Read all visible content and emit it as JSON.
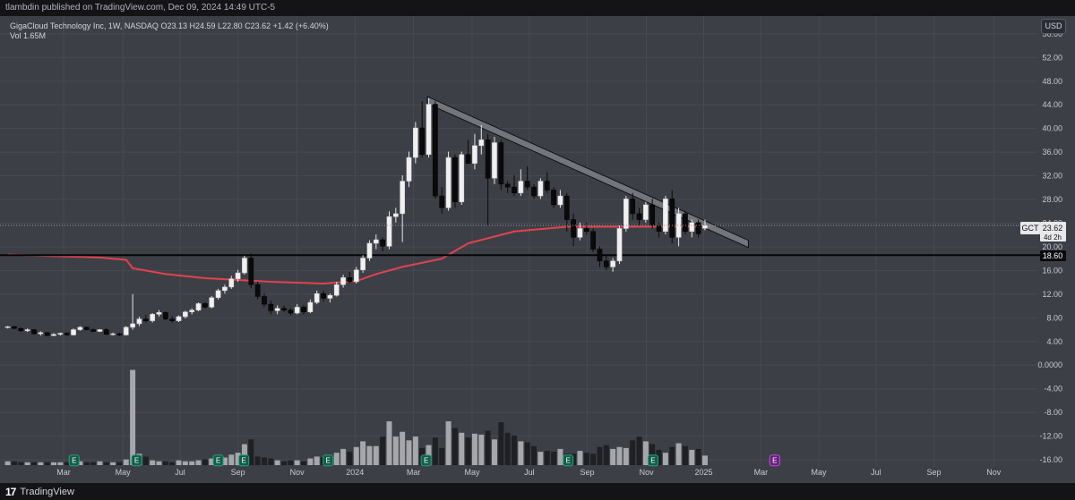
{
  "header": {
    "publish_text": "tlambdin published on TradingView.com, Dec 09, 2024 14:49 UTC-5"
  },
  "legend": {
    "symbol_line": "GigaCloud Technology Inc, 1W, NASDAQ",
    "o_label": "O",
    "o_value": "23.13",
    "h_label": "H",
    "h_value": "24.59",
    "l_label": "L",
    "l_value": "22.80",
    "c_label": "C",
    "c_value": "23.62",
    "change": "+1.42 (+6.40%)",
    "vol_label": "Vol",
    "vol_value": "1.65M"
  },
  "currency_button": "USD",
  "footer": {
    "brand": "TradingView",
    "logo_glyph": "17"
  },
  "price_tag": {
    "symbol": "GCT",
    "price": "23.62",
    "countdown": "4d 2h"
  },
  "level_tag": "18.60",
  "colors": {
    "background": "#141417",
    "plot_bg": "#3d3f47",
    "grid": "#484a53",
    "candle_up": "#f0f0f0",
    "candle_down": "#0a0a0a",
    "ma_line": "#e2434e",
    "trend_channel": "#7c7f86",
    "vol_up": "#a5a7ad",
    "vol_down": "#1f2024",
    "earnings_green": "#0f5d49",
    "earnings_purple": "#6a1e80"
  },
  "chart_data": {
    "type": "candlestick",
    "timeframe": "1W",
    "y_ticks": [
      "56.00",
      "52.00",
      "48.00",
      "44.00",
      "40.00",
      "36.00",
      "32.00",
      "28.00",
      "24.00",
      "20.00",
      "16.00",
      "12.00",
      "8.00",
      "4.00",
      "0.0000",
      "-4.00",
      "-8.00",
      "-12.00",
      "-16.00"
    ],
    "y_range": [
      -17.2,
      59
    ],
    "x_ticks": [
      {
        "label": "Mar",
        "t": 8.5
      },
      {
        "label": "May",
        "t": 17.5
      },
      {
        "label": "Jul",
        "t": 26.2
      },
      {
        "label": "Sep",
        "t": 35
      },
      {
        "label": "Nov",
        "t": 44
      },
      {
        "label": "2024",
        "t": 52.8
      },
      {
        "label": "Mar",
        "t": 61.7
      },
      {
        "label": "May",
        "t": 70.6
      },
      {
        "label": "Jul",
        "t": 79.3
      },
      {
        "label": "Sep",
        "t": 88.1
      },
      {
        "label": "Nov",
        "t": 97.1
      },
      {
        "label": "2025",
        "t": 105.8
      },
      {
        "label": "Mar",
        "t": 114.5
      },
      {
        "label": "May",
        "t": 123.3
      },
      {
        "label": "Jul",
        "t": 132
      },
      {
        "label": "Sep",
        "t": 140.8
      },
      {
        "label": "Nov",
        "t": 149.9
      }
    ],
    "candles": [
      [
        6.4,
        6.6,
        6.2,
        6.5
      ],
      [
        6.5,
        6.7,
        6.1,
        6.2
      ],
      [
        6.2,
        6.4,
        5.6,
        5.8
      ],
      [
        5.8,
        6.2,
        5.6,
        6.0
      ],
      [
        6.0,
        6.1,
        5.2,
        5.3
      ],
      [
        5.3,
        5.7,
        5.0,
        5.5
      ],
      [
        5.5,
        5.6,
        4.9,
        5.0
      ],
      [
        5.0,
        5.4,
        4.9,
        5.2
      ],
      [
        5.2,
        5.5,
        5.0,
        5.4
      ],
      [
        5.4,
        5.6,
        5.0,
        5.1
      ],
      [
        5.1,
        6.2,
        5.0,
        6.0
      ],
      [
        6.0,
        6.6,
        5.8,
        6.4
      ],
      [
        6.4,
        6.5,
        5.9,
        6.0
      ],
      [
        6.0,
        6.2,
        5.6,
        5.7
      ],
      [
        5.7,
        6.1,
        5.6,
        6.0
      ],
      [
        6.0,
        6.3,
        5.1,
        5.2
      ],
      [
        5.2,
        5.5,
        5.0,
        5.3
      ],
      [
        5.3,
        5.5,
        4.9,
        5.1
      ],
      [
        5.1,
        6.6,
        5.0,
        6.4
      ],
      [
        6.4,
        12.0,
        6.0,
        7.0
      ],
      [
        7.0,
        8.2,
        6.6,
        7.8
      ],
      [
        7.8,
        8.5,
        7.2,
        7.5
      ],
      [
        7.5,
        8.8,
        7.2,
        8.6
      ],
      [
        8.6,
        9.3,
        8.2,
        8.9
      ],
      [
        8.9,
        9.1,
        7.6,
        7.8
      ],
      [
        7.8,
        8.3,
        7.2,
        7.5
      ],
      [
        7.5,
        8.4,
        7.3,
        8.2
      ],
      [
        8.2,
        9.2,
        7.9,
        9.0
      ],
      [
        9.0,
        9.6,
        8.6,
        9.3
      ],
      [
        9.3,
        10.6,
        9.1,
        10.4
      ],
      [
        10.4,
        10.6,
        9.6,
        9.8
      ],
      [
        9.8,
        11.7,
        9.6,
        11.4
      ],
      [
        11.4,
        12.9,
        11.1,
        12.6
      ],
      [
        12.6,
        13.6,
        12.1,
        13.2
      ],
      [
        13.2,
        15.1,
        12.9,
        14.6
      ],
      [
        14.6,
        16.1,
        14.1,
        15.6
      ],
      [
        15.6,
        18.5,
        15.3,
        18.1
      ],
      [
        18.1,
        18.9,
        13.0,
        13.6
      ],
      [
        13.6,
        14.1,
        11.1,
        11.6
      ],
      [
        11.6,
        12.1,
        9.8,
        10.3
      ],
      [
        10.3,
        10.9,
        8.6,
        9.2
      ],
      [
        9.2,
        10.1,
        8.6,
        9.6
      ],
      [
        9.6,
        10.1,
        9.0,
        9.3
      ],
      [
        9.3,
        9.6,
        8.4,
        8.8
      ],
      [
        8.8,
        10.3,
        8.6,
        9.8
      ],
      [
        9.8,
        10.1,
        8.6,
        9.0
      ],
      [
        9.0,
        11.1,
        8.8,
        10.6
      ],
      [
        10.6,
        12.6,
        10.3,
        12.1
      ],
      [
        12.1,
        12.6,
        10.8,
        11.3
      ],
      [
        11.3,
        12.1,
        10.6,
        11.8
      ],
      [
        11.8,
        14.1,
        11.6,
        13.6
      ],
      [
        13.6,
        15.3,
        13.1,
        14.8
      ],
      [
        14.8,
        15.8,
        13.8,
        14.1
      ],
      [
        14.1,
        16.6,
        13.8,
        16.1
      ],
      [
        16.1,
        18.6,
        15.6,
        18.1
      ],
      [
        18.1,
        21.1,
        17.6,
        20.6
      ],
      [
        20.6,
        22.1,
        19.6,
        21.2
      ],
      [
        21.2,
        21.6,
        19.2,
        20.1
      ],
      [
        20.1,
        26.0,
        19.6,
        25.1
      ],
      [
        25.1,
        26.6,
        24.1,
        25.6
      ],
      [
        25.6,
        32.1,
        20.8,
        31.1
      ],
      [
        31.1,
        36.1,
        30.1,
        35.1
      ],
      [
        35.1,
        41.1,
        34.1,
        40.1
      ],
      [
        40.1,
        44.6,
        35.1,
        35.6
      ],
      [
        35.6,
        45.1,
        35.1,
        44.1
      ],
      [
        44.1,
        44.6,
        28.1,
        28.6
      ],
      [
        28.6,
        30.1,
        25.6,
        26.6
      ],
      [
        26.6,
        36.1,
        26.1,
        35.1
      ],
      [
        35.1,
        35.6,
        26.6,
        27.6
      ],
      [
        27.6,
        36.1,
        27.1,
        35.6
      ],
      [
        35.6,
        38.1,
        34.6,
        34.1
      ],
      [
        34.1,
        39.1,
        33.1,
        37.1
      ],
      [
        37.1,
        40.6,
        35.6,
        38.1
      ],
      [
        38.1,
        39.1,
        23.6,
        31.6
      ],
      [
        31.6,
        38.6,
        30.6,
        37.6
      ],
      [
        37.6,
        38.1,
        29.6,
        30.6
      ],
      [
        30.6,
        31.1,
        29.1,
        30.1
      ],
      [
        30.1,
        32.1,
        28.6,
        29.1
      ],
      [
        29.1,
        33.1,
        28.6,
        31.1
      ],
      [
        31.1,
        33.6,
        29.6,
        30.1
      ],
      [
        30.1,
        30.6,
        28.1,
        28.6
      ],
      [
        28.6,
        31.6,
        28.1,
        31.1
      ],
      [
        31.1,
        32.6,
        29.1,
        29.6
      ],
      [
        29.6,
        30.1,
        26.6,
        27.1
      ],
      [
        27.1,
        29.6,
        26.6,
        28.6
      ],
      [
        28.6,
        29.1,
        22.6,
        24.6
      ],
      [
        24.6,
        25.6,
        20.1,
        21.6
      ],
      [
        21.6,
        24.1,
        21.1,
        23.1
      ],
      [
        23.1,
        24.1,
        22.1,
        22.6
      ],
      [
        22.6,
        23.1,
        19.1,
        19.6
      ],
      [
        19.6,
        20.1,
        16.6,
        17.6
      ],
      [
        17.6,
        18.6,
        16.1,
        16.6
      ],
      [
        16.6,
        18.1,
        15.8,
        17.6
      ],
      [
        17.6,
        23.6,
        17.1,
        23.1
      ],
      [
        23.1,
        28.6,
        22.6,
        28.1
      ],
      [
        28.1,
        29.1,
        24.6,
        25.6
      ],
      [
        25.6,
        26.6,
        23.6,
        24.6
      ],
      [
        24.6,
        27.6,
        24.1,
        27.1
      ],
      [
        27.1,
        28.1,
        23.1,
        23.6
      ],
      [
        23.6,
        24.1,
        21.6,
        22.6
      ],
      [
        22.6,
        28.6,
        22.1,
        28.1
      ],
      [
        28.1,
        29.6,
        20.6,
        21.6
      ],
      [
        21.6,
        26.6,
        20.1,
        25.6
      ],
      [
        25.6,
        26.1,
        22.1,
        22.6
      ],
      [
        22.6,
        24.6,
        21.6,
        24.1
      ],
      [
        24.1,
        24.6,
        21.6,
        22.2
      ],
      [
        23.13,
        24.59,
        22.8,
        23.62
      ]
    ],
    "volume_relative": [
      0.04,
      0.04,
      0.03,
      0.03,
      0.03,
      0.03,
      0.03,
      0.03,
      0.03,
      0.03,
      0.05,
      0.04,
      0.03,
      0.03,
      0.04,
      0.03,
      0.03,
      0.03,
      0.06,
      1.0,
      0.12,
      0.09,
      0.05,
      0.04,
      0.04,
      0.03,
      0.05,
      0.04,
      0.04,
      0.05,
      0.06,
      0.07,
      0.07,
      0.08,
      0.11,
      0.13,
      0.22,
      0.27,
      0.09,
      0.08,
      0.07,
      0.05,
      0.04,
      0.05,
      0.05,
      0.04,
      0.07,
      0.09,
      0.08,
      0.07,
      0.13,
      0.17,
      0.14,
      0.19,
      0.25,
      0.2,
      0.2,
      0.3,
      0.46,
      0.3,
      0.35,
      0.26,
      0.3,
      0.18,
      0.21,
      0.29,
      0.18,
      0.46,
      0.39,
      0.34,
      0.29,
      0.33,
      0.32,
      0.36,
      0.27,
      0.45,
      0.34,
      0.31,
      0.25,
      0.24,
      0.2,
      0.14,
      0.15,
      0.14,
      0.17,
      0.12,
      0.12,
      0.15,
      0.13,
      0.12,
      0.19,
      0.21,
      0.17,
      0.19,
      0.18,
      0.26,
      0.3,
      0.25,
      0.22,
      0.16,
      0.13,
      0.19,
      0.23,
      0.2,
      0.16,
      0.17,
      0.1
    ],
    "moving_average": [
      [
        0,
        18.7
      ],
      [
        8,
        18.4
      ],
      [
        14,
        18.2
      ],
      [
        18,
        17.8
      ],
      [
        19,
        16.4
      ],
      [
        24,
        15.4
      ],
      [
        30,
        14.7
      ],
      [
        40,
        14.1
      ],
      [
        48,
        13.8
      ],
      [
        53,
        14.2
      ],
      [
        56,
        15.4
      ],
      [
        60,
        16.6
      ],
      [
        66,
        18.0
      ],
      [
        70,
        20.6
      ],
      [
        77,
        22.6
      ],
      [
        85,
        23.4
      ],
      [
        95,
        23.4
      ],
      [
        107,
        23.4
      ]
    ],
    "horizontal_level": 18.6,
    "trendline": {
      "from": {
        "t": 63.8,
        "price": 45.4
      },
      "to": {
        "t": 112.6,
        "price": 21.1
      }
    },
    "earnings_markers": [
      {
        "t": 10.1,
        "type": "E",
        "color": "green"
      },
      {
        "t": 19.6,
        "type": "E",
        "color": "green"
      },
      {
        "t": 32.0,
        "type": "E",
        "color": "green"
      },
      {
        "t": 35.9,
        "type": "E",
        "color": "green"
      },
      {
        "t": 48.7,
        "type": "E",
        "color": "green"
      },
      {
        "t": 63.6,
        "type": "E",
        "color": "green"
      },
      {
        "t": 85.2,
        "type": "E",
        "color": "green"
      },
      {
        "t": 98.1,
        "type": "E",
        "color": "green"
      },
      {
        "t": 116.6,
        "type": "E",
        "color": "purple"
      }
    ],
    "last_price": 23.62,
    "grid": true,
    "legend_position": "top-left"
  }
}
